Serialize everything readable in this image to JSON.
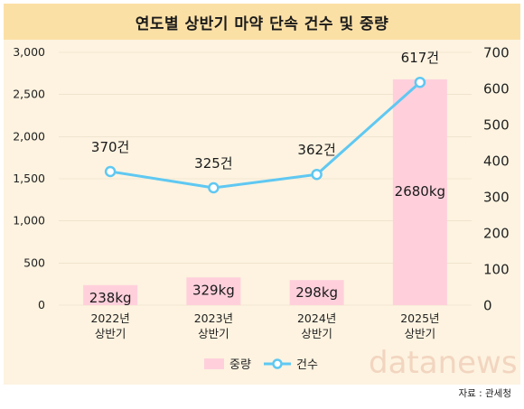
{
  "title": "연도별 상반기 마약 단속 건수 및 중량",
  "source": "자료 : 관세청",
  "watermark": "datanews",
  "colors": {
    "title_bg": "#fbe0a6",
    "chart_bg": "#fdf3e0",
    "bar": "#ffd0dc",
    "line": "#5fc8f2",
    "point_fill": "#ffffff",
    "grid": "#f2f2f2"
  },
  "chart_data": {
    "type": "bar+line",
    "categories": [
      "2022년 상반기",
      "2023년 상반기",
      "2024년 상반기",
      "2025년 상반기"
    ],
    "category_lines": [
      [
        "2022년",
        "상반기"
      ],
      [
        "2023년",
        "상반기"
      ],
      [
        "2024년",
        "상반기"
      ],
      [
        "2025년",
        "상반기"
      ]
    ],
    "series": [
      {
        "name": "중량",
        "type": "bar",
        "axis": "left",
        "values": [
          238,
          329,
          298,
          2680
        ],
        "labels": [
          "238kg",
          "329kg",
          "298kg",
          "2680kg"
        ]
      },
      {
        "name": "건수",
        "type": "line",
        "axis": "right",
        "values": [
          370,
          325,
          362,
          617
        ],
        "labels": [
          "370건",
          "325건",
          "362건",
          "617건"
        ]
      }
    ],
    "y_left": {
      "min": 0,
      "max": 3000,
      "ticks": [
        0,
        500,
        1000,
        1500,
        2000,
        2500,
        3000
      ],
      "tick_labels": [
        "0",
        "500",
        "1,000",
        "1,500",
        "2,000",
        "2,500",
        "3,000"
      ]
    },
    "y_right": {
      "min": 0,
      "max": 700,
      "ticks": [
        0,
        100,
        200,
        300,
        400,
        500,
        600,
        700
      ],
      "tick_labels": [
        "0",
        "100",
        "200",
        "300",
        "400",
        "500",
        "600",
        "700"
      ]
    },
    "legend": [
      "중량",
      "건수"
    ],
    "legend_position": "bottom-center",
    "grid": true
  }
}
